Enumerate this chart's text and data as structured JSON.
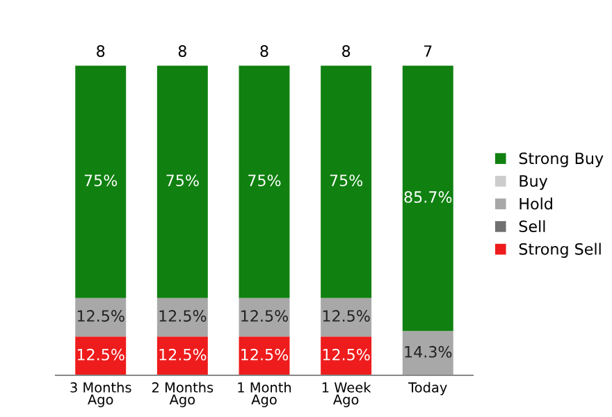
{
  "chart_data": {
    "type": "bar",
    "stacked": true,
    "categories": [
      "3 Months\nAgo",
      "2 Months\nAgo",
      "1 Month\nAgo",
      "1 Week\nAgo",
      "Today"
    ],
    "series": [
      {
        "name": "Strong Sell",
        "color": "#ee1c1c",
        "values": [
          12.5,
          12.5,
          12.5,
          12.5,
          0
        ],
        "value_labels": [
          "12.5%",
          "12.5%",
          "12.5%",
          "12.5%",
          null
        ]
      },
      {
        "name": "Sell",
        "color": "#707070",
        "values": [
          0,
          0,
          0,
          0,
          0
        ],
        "value_labels": [
          null,
          null,
          null,
          null,
          null
        ]
      },
      {
        "name": "Hold",
        "color": "#a8a8a8",
        "values": [
          12.5,
          12.5,
          12.5,
          12.5,
          14.3
        ],
        "value_labels": [
          "12.5%",
          "12.5%",
          "12.5%",
          "12.5%",
          "14.3%"
        ]
      },
      {
        "name": "Buy",
        "color": "#cccccc",
        "values": [
          0,
          0,
          0,
          0,
          0
        ],
        "value_labels": [
          null,
          null,
          null,
          null,
          null
        ]
      },
      {
        "name": "Strong Buy",
        "color": "#108010",
        "values": [
          75,
          75,
          75,
          75,
          85.7
        ],
        "value_labels": [
          "75%",
          "75%",
          "75%",
          "75%",
          "85.7%"
        ]
      }
    ],
    "annotations": [
      "8",
      "8",
      "8",
      "8",
      "7"
    ],
    "legend": "right",
    "grid": false,
    "tick_labels": "x"
  }
}
